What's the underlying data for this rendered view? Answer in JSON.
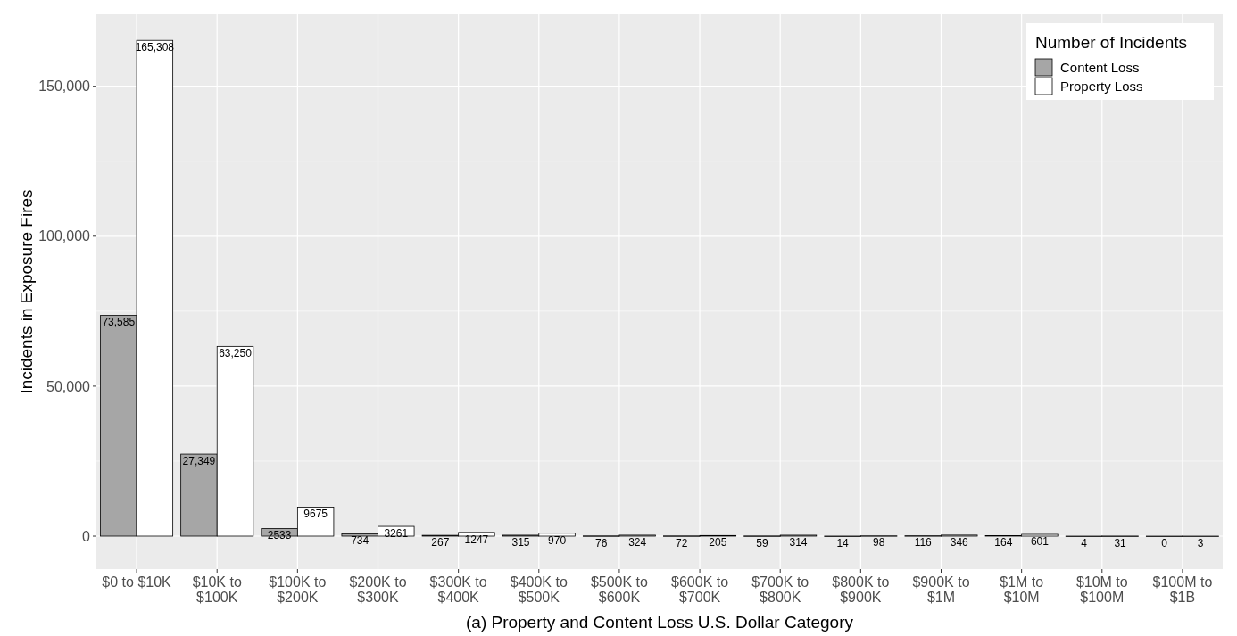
{
  "chart_data": {
    "type": "bar",
    "xlabel": "(a) Property and Content Loss U.S. Dollar Category",
    "ylabel": "Incidents in Exposure Fires",
    "legend_title": "Number of Incidents",
    "categories": [
      "$0 to $10K",
      "$10K to\n$100K",
      "$100K to\n$200K",
      "$200K to\n$300K",
      "$300K to\n$400K",
      "$400K to\n$500K",
      "$500K to\n$600K",
      "$600K to\n$700K",
      "$700K to\n$800K",
      "$800K to\n$900K",
      "$900K to\n$1M",
      "$1M to\n$10M",
      "$10M to\n$100M",
      "$100M to\n$1B"
    ],
    "series": [
      {
        "name": "Content Loss",
        "color": "#a6a6a6",
        "values": [
          73585,
          27349,
          2533,
          734,
          267,
          315,
          76,
          72,
          59,
          14,
          116,
          164,
          4,
          0
        ],
        "value_labels": [
          "73,585",
          "27,349",
          "2533",
          "734",
          "267",
          "315",
          "76",
          "72",
          "59",
          "14",
          "116",
          "164",
          "4",
          "0"
        ]
      },
      {
        "name": "Property Loss",
        "color": "#ffffff",
        "values": [
          165308,
          63250,
          9675,
          3261,
          1247,
          970,
          324,
          205,
          314,
          98,
          346,
          601,
          31,
          3
        ],
        "value_labels": [
          "165,308",
          "63,250",
          "9675",
          "3261",
          "1247",
          "970",
          "324",
          "205",
          "314",
          "98",
          "346",
          "601",
          "31",
          "3"
        ]
      }
    ],
    "ylim": [
      -11000,
      174000
    ],
    "yticks": [
      {
        "value": 0,
        "label": "0"
      },
      {
        "value": 50000,
        "label": "50,000"
      },
      {
        "value": 100000,
        "label": "100,000"
      },
      {
        "value": 150000,
        "label": "150,000"
      }
    ],
    "grid": true,
    "legend": "top right"
  }
}
